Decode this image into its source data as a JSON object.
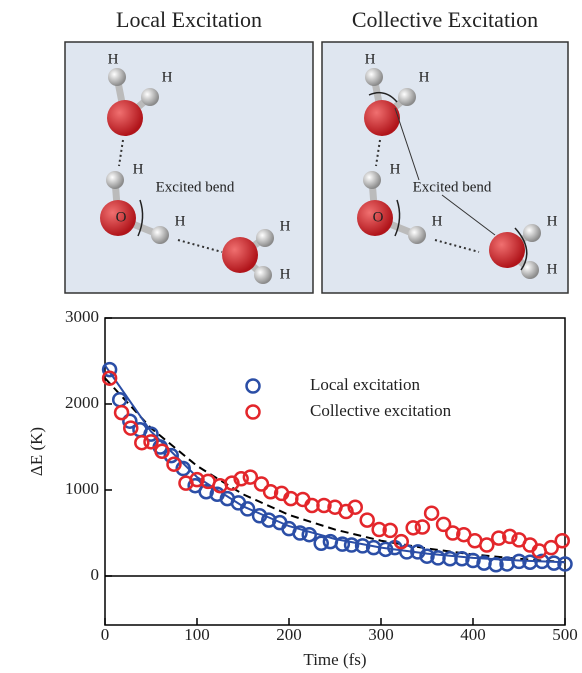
{
  "panels": [
    {
      "title": "Local Excitation",
      "labels": [
        "H",
        "H",
        "H",
        "O",
        "H",
        "Excited bend",
        "H",
        "H"
      ]
    },
    {
      "title": "Collective Excitation",
      "labels": [
        "H",
        "H",
        "H",
        "O",
        "H",
        "Excited bend",
        "H",
        "H"
      ]
    }
  ],
  "chart_data": {
    "type": "scatter",
    "xlabel": "Time (fs)",
    "ylabel": "ΔE (K)",
    "xlim": [
      0,
      500
    ],
    "ylim": [
      -570,
      3000
    ],
    "xticks": [
      0,
      100,
      200,
      300,
      400,
      500
    ],
    "yticks": [
      0,
      1000,
      2000,
      3000
    ],
    "zero_line": true,
    "legend": "upper-center",
    "series": [
      {
        "name": "Local excitation",
        "color": "#2b4ea6",
        "x": [
          5,
          16,
          27,
          38,
          50,
          60,
          72,
          85,
          98,
          110,
          122,
          133,
          145,
          155,
          168,
          178,
          190,
          200,
          212,
          222,
          235,
          245,
          258,
          268,
          280,
          292,
          305,
          315,
          328,
          340,
          350,
          362,
          375,
          388,
          400,
          412,
          425,
          437,
          450,
          462,
          475,
          488,
          500
        ],
        "values": [
          2400,
          2050,
          1800,
          1700,
          1650,
          1500,
          1400,
          1250,
          1050,
          980,
          950,
          900,
          850,
          780,
          700,
          650,
          620,
          550,
          500,
          480,
          380,
          400,
          370,
          360,
          350,
          330,
          310,
          330,
          280,
          280,
          230,
          210,
          200,
          200,
          180,
          150,
          130,
          140,
          170,
          160,
          170,
          150,
          140
        ]
      },
      {
        "name": "Collective excitation",
        "color": "#e3262b",
        "x": [
          5,
          18,
          28,
          40,
          50,
          62,
          75,
          88,
          100,
          112,
          125,
          138,
          148,
          158,
          170,
          180,
          192,
          202,
          215,
          225,
          238,
          250,
          262,
          272,
          285,
          298,
          310,
          322,
          335,
          345,
          355,
          368,
          378,
          390,
          402,
          415,
          428,
          440,
          450,
          462,
          472,
          485,
          497
        ],
        "values": [
          2300,
          1900,
          1720,
          1550,
          1560,
          1450,
          1300,
          1080,
          1120,
          1100,
          1050,
          1080,
          1130,
          1150,
          1070,
          980,
          960,
          900,
          890,
          820,
          820,
          800,
          750,
          800,
          650,
          540,
          530,
          400,
          560,
          570,
          730,
          600,
          500,
          480,
          410,
          360,
          440,
          460,
          420,
          360,
          290,
          330,
          410
        ]
      }
    ],
    "fits": [
      {
        "color": "#000000",
        "dashed": true,
        "x": [
          0,
          50,
          100,
          150,
          200,
          250,
          300,
          350,
          400,
          450,
          500
        ],
        "values": [
          2300,
          1720,
          1280,
          950,
          710,
          540,
          410,
          320,
          250,
          200,
          160
        ]
      },
      {
        "color": "#2b4ea6",
        "dashed": false,
        "x": [
          0,
          50,
          100,
          150,
          200,
          250,
          300,
          350,
          400,
          450,
          500
        ],
        "values": [
          2450,
          1680,
          1150,
          810,
          580,
          430,
          330,
          260,
          210,
          180,
          160
        ]
      }
    ]
  }
}
